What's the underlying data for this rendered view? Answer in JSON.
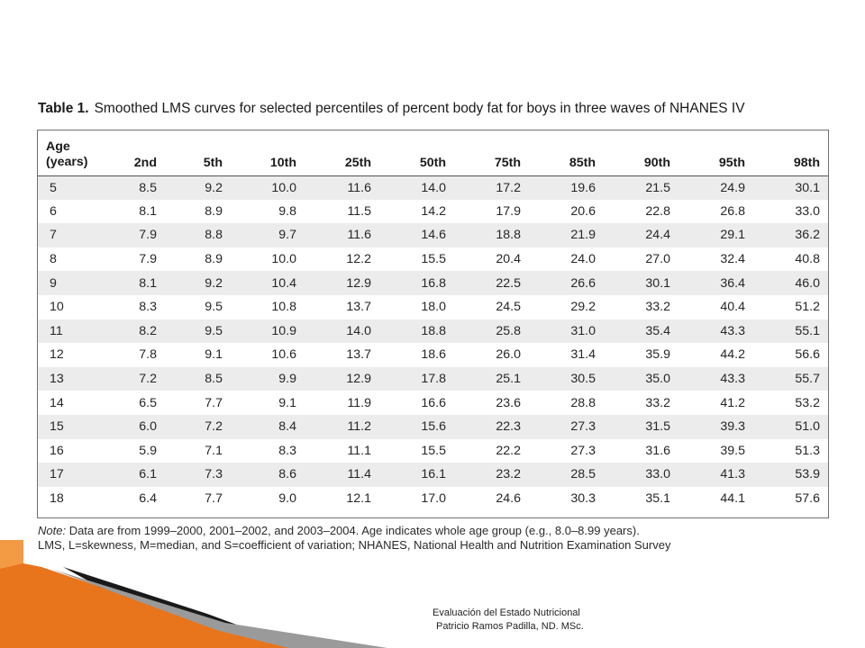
{
  "caption": {
    "label": "Table 1.",
    "title": "Smoothed LMS curves for selected percentiles of percent body fat for boys in three waves of NHANES IV"
  },
  "table": {
    "age_header_line1": "Age",
    "age_header_line2": "(years)",
    "percentile_headers": [
      "2nd",
      "5th",
      "10th",
      "25th",
      "50th",
      "75th",
      "85th",
      "90th",
      "95th",
      "98th"
    ],
    "rows": [
      [
        "5",
        "8.5",
        "9.2",
        "10.0",
        "11.6",
        "14.0",
        "17.2",
        "19.6",
        "21.5",
        "24.9",
        "30.1"
      ],
      [
        "6",
        "8.1",
        "8.9",
        "9.8",
        "11.5",
        "14.2",
        "17.9",
        "20.6",
        "22.8",
        "26.8",
        "33.0"
      ],
      [
        "7",
        "7.9",
        "8.8",
        "9.7",
        "11.6",
        "14.6",
        "18.8",
        "21.9",
        "24.4",
        "29.1",
        "36.2"
      ],
      [
        "8",
        "7.9",
        "8.9",
        "10.0",
        "12.2",
        "15.5",
        "20.4",
        "24.0",
        "27.0",
        "32.4",
        "40.8"
      ],
      [
        "9",
        "8.1",
        "9.2",
        "10.4",
        "12.9",
        "16.8",
        "22.5",
        "26.6",
        "30.1",
        "36.4",
        "46.0"
      ],
      [
        "10",
        "8.3",
        "9.5",
        "10.8",
        "13.7",
        "18.0",
        "24.5",
        "29.2",
        "33.2",
        "40.4",
        "51.2"
      ],
      [
        "11",
        "8.2",
        "9.5",
        "10.9",
        "14.0",
        "18.8",
        "25.8",
        "31.0",
        "35.4",
        "43.3",
        "55.1"
      ],
      [
        "12",
        "7.8",
        "9.1",
        "10.6",
        "13.7",
        "18.6",
        "26.0",
        "31.4",
        "35.9",
        "44.2",
        "56.6"
      ],
      [
        "13",
        "7.2",
        "8.5",
        "9.9",
        "12.9",
        "17.8",
        "25.1",
        "30.5",
        "35.0",
        "43.3",
        "55.7"
      ],
      [
        "14",
        "6.5",
        "7.7",
        "9.1",
        "11.9",
        "16.6",
        "23.6",
        "28.8",
        "33.2",
        "41.2",
        "53.2"
      ],
      [
        "15",
        "6.0",
        "7.2",
        "8.4",
        "11.2",
        "15.6",
        "22.3",
        "27.3",
        "31.5",
        "39.3",
        "51.0"
      ],
      [
        "16",
        "5.9",
        "7.1",
        "8.3",
        "11.1",
        "15.5",
        "22.2",
        "27.3",
        "31.6",
        "39.5",
        "51.3"
      ],
      [
        "17",
        "6.1",
        "7.3",
        "8.6",
        "11.4",
        "16.1",
        "23.2",
        "28.5",
        "33.0",
        "41.3",
        "53.9"
      ],
      [
        "18",
        "6.4",
        "7.7",
        "9.0",
        "12.1",
        "17.0",
        "24.6",
        "30.3",
        "35.1",
        "44.1",
        "57.6"
      ]
    ]
  },
  "note": {
    "label": "Note:",
    "line1": " Data are from 1999–2000, 2001–2002, and 2003–2004. Age indicates whole age group (e.g., 8.0–8.99 years).",
    "line2": "LMS, L=skewness, M=median, and S=coefficient of variation; NHANES, National Health and Nutrition Examination Survey"
  },
  "footer": {
    "line1": "Evaluación del Estado Nutricional",
    "line2": "Patricio Ramos Padilla, ND. MSc."
  },
  "colors": {
    "accent_orange": "#e8741c",
    "row_stripe": "#ececec",
    "decoration_dark": "#1a1a1a"
  }
}
